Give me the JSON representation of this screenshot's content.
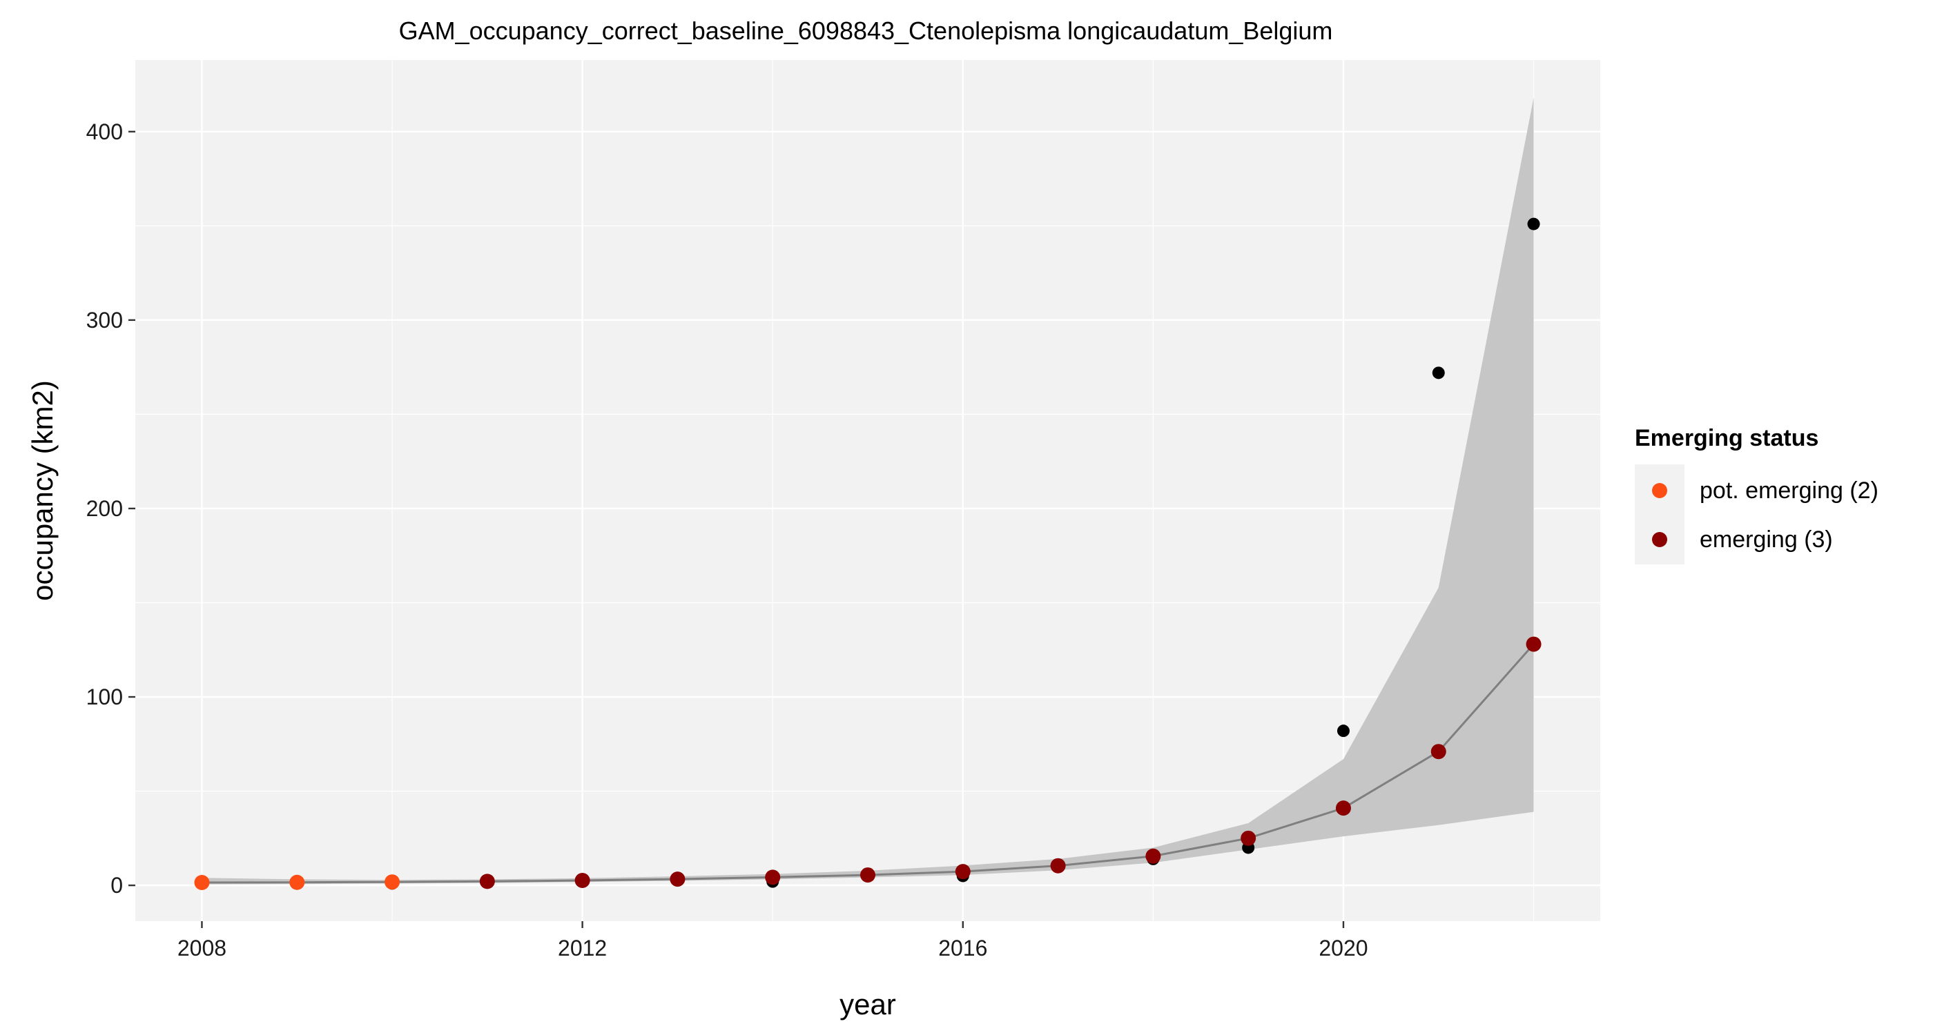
{
  "chart_data": {
    "type": "line",
    "title": "GAM_occupancy_correct_baseline_6098843_Ctenolepisma longicaudatum_Belgium",
    "xlabel": "year",
    "ylabel": "occupancy (km2)",
    "xlim": [
      2007.3,
      2022.7
    ],
    "ylim": [
      -19,
      438
    ],
    "x_ticks": [
      2008,
      2012,
      2016,
      2020
    ],
    "x_tick_labels": [
      "2008",
      "2012",
      "2016",
      "2020"
    ],
    "y_ticks": [
      0,
      100,
      200,
      300,
      400
    ],
    "y_tick_labels": [
      "0",
      "100",
      "200",
      "300",
      "400"
    ],
    "grid": true,
    "x": [
      2008,
      2009,
      2010,
      2011,
      2012,
      2013,
      2014,
      2015,
      2016,
      2017,
      2018,
      2019,
      2020,
      2021,
      2022
    ],
    "observed": [
      2,
      2,
      1,
      2,
      2,
      3,
      2,
      5,
      5,
      10,
      14,
      20,
      82,
      272,
      351
    ],
    "fit": [
      1.5,
      1.6,
      1.8,
      2.1,
      2.6,
      3.3,
      4.3,
      5.5,
      7.3,
      10.4,
      15.5,
      25,
      41,
      71,
      128
    ],
    "ci_lower": [
      0.5,
      0.7,
      1.0,
      1.3,
      1.8,
      2.4,
      3.2,
      4.2,
      5.5,
      8,
      12,
      19,
      26,
      32,
      39
    ],
    "ci_upper": [
      4.0,
      3.2,
      2.9,
      3.2,
      3.8,
      4.8,
      6.0,
      7.8,
      10.5,
      14,
      20,
      33,
      67,
      158,
      418
    ],
    "status": [
      2,
      2,
      2,
      3,
      3,
      3,
      3,
      3,
      3,
      3,
      3,
      3,
      3,
      3,
      3
    ],
    "legend": {
      "title": "Emerging status",
      "placement": "right",
      "entries": [
        {
          "label": "pot. emerging (2)",
          "status": 2,
          "color": "#fc4e14"
        },
        {
          "label": "emerging (3)",
          "status": 3,
          "color": "#8b0000"
        }
      ]
    },
    "colors": {
      "panel": "#f2f2f2",
      "ribbon": "#c6c6c6",
      "fit_line": "#7f7f7f",
      "observed_point": "#000000",
      "grid": "#ffffff"
    }
  }
}
